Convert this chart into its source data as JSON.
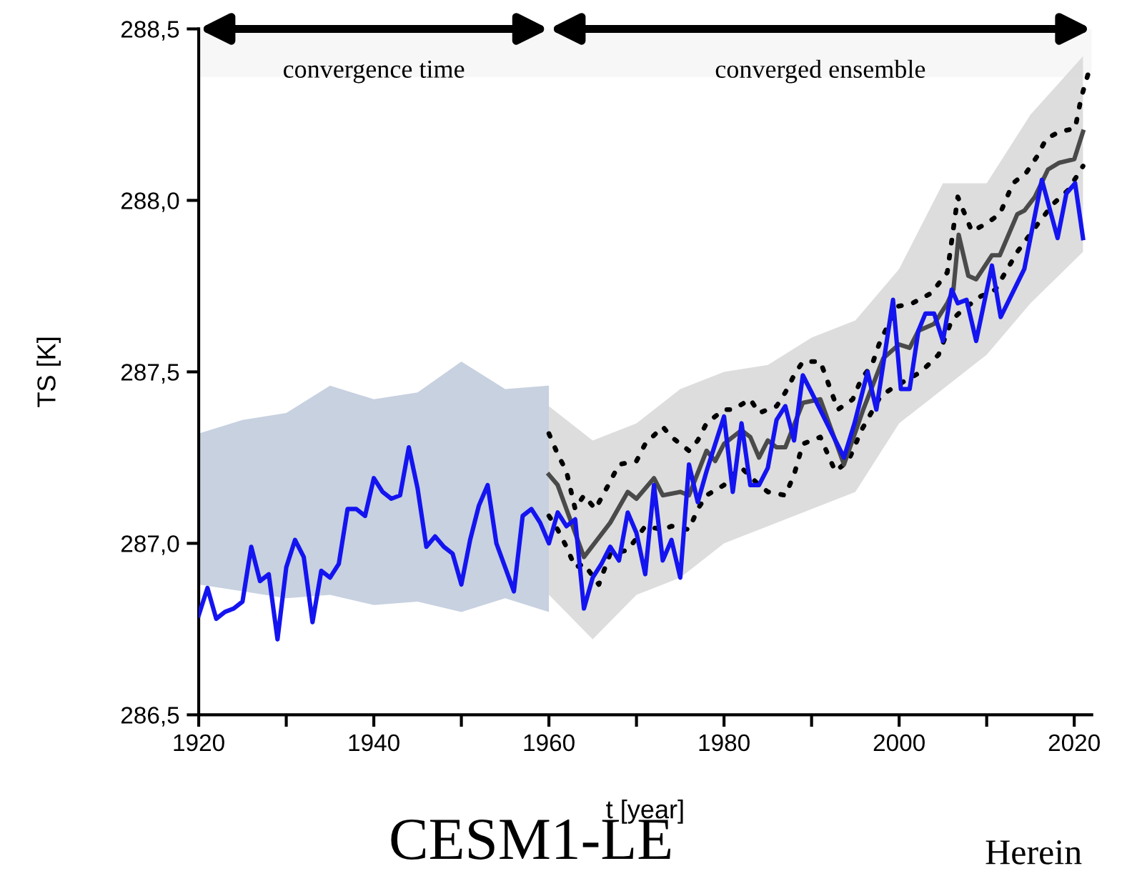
{
  "chart_data": {
    "type": "line",
    "xlabel": "t [year]",
    "ylabel": "TS [K]",
    "xlim": [
      1920,
      2022
    ],
    "ylim": [
      286.5,
      288.5
    ],
    "xticks": [
      1920,
      {
        "value": 1930,
        "label": null
      },
      1940,
      {
        "value": 1950,
        "label": null
      },
      1960,
      {
        "value": 1970,
        "label": null
      },
      1980,
      {
        "value": 1990,
        "label": null
      },
      2000,
      {
        "value": 2010,
        "label": null
      },
      2020
    ],
    "yticks": [
      {
        "value": 286.5,
        "label": "286,5"
      },
      {
        "value": 287.0,
        "label": "287,0"
      },
      {
        "value": 287.5,
        "label": "287,5"
      },
      {
        "value": 288.0,
        "label": "288,0"
      },
      {
        "value": 288.5,
        "label": "288,5"
      }
    ],
    "grid": false,
    "legend": false,
    "line_style": "solid",
    "bands": [
      {
        "axis": "x",
        "from": 1920,
        "to": 1960,
        "label": "convergence time",
        "color": "#f7f7f7"
      },
      {
        "axis": "x",
        "from": 1960,
        "to": 2022,
        "label": "converged ensemble",
        "color": "#f7f7f7"
      }
    ],
    "annotations": [
      "CESM1-LE",
      "Herein"
    ],
    "series": [
      {
        "type": "area",
        "color": "#b9c6d8",
        "x": [
          1920,
          1925,
          1930,
          1935,
          1940,
          1945,
          1950,
          1955,
          1960
        ],
        "values": [
          null,
          null,
          null,
          null,
          null,
          null,
          null,
          null,
          null
        ],
        "lower": [
          286.88,
          286.86,
          286.84,
          286.85,
          286.82,
          286.83,
          286.8,
          286.84,
          286.8
        ],
        "upper": [
          287.32,
          287.36,
          287.38,
          287.46,
          287.42,
          287.44,
          287.53,
          287.45,
          287.46
        ]
      },
      {
        "type": "area",
        "color": "#d4d4d4",
        "x": [
          1960,
          1965,
          1970,
          1975,
          1980,
          1985,
          1990,
          1995,
          2000,
          2005,
          2010,
          2015,
          2021
        ],
        "values": [
          null,
          null,
          null,
          null,
          null,
          null,
          null,
          null,
          null,
          null,
          null,
          null,
          null
        ],
        "lower": [
          286.85,
          286.72,
          286.85,
          286.9,
          287.0,
          287.05,
          287.1,
          287.15,
          287.35,
          287.45,
          287.55,
          287.7,
          287.85
        ],
        "upper": [
          287.4,
          287.3,
          287.35,
          287.45,
          287.5,
          287.52,
          287.6,
          287.65,
          287.8,
          288.05,
          288.05,
          288.25,
          288.42
        ]
      },
      {
        "color": "#000000",
        "line_style": "dotted",
        "x": [
          1960,
          1961,
          1962,
          1963,
          1964,
          1965.3,
          1967,
          1968,
          1970,
          1971,
          1973,
          1974,
          1976,
          1977,
          1978,
          1980,
          1981,
          1983,
          1984,
          1986,
          1987,
          1988,
          1989,
          1991,
          1993,
          1994.7,
          1995.7,
          1996.9,
          1997.7,
          1999.7,
          2001.5,
          2003.7,
          2005.5,
          2006.7,
          2008.3,
          2009.8,
          2011.5,
          2013,
          2014.5,
          2015.8,
          2016.8,
          2018.3,
          2020.1,
          2020.8,
          2021.6
        ],
        "values": [
          287.32,
          287.26,
          287.21,
          287.1,
          287.14,
          287.1,
          287.18,
          287.23,
          287.24,
          287.29,
          287.34,
          287.31,
          287.27,
          287.3,
          287.35,
          287.39,
          287.39,
          287.42,
          287.38,
          287.4,
          287.44,
          287.49,
          287.53,
          287.53,
          287.39,
          287.42,
          287.48,
          287.52,
          287.58,
          287.69,
          287.7,
          287.73,
          287.79,
          288.01,
          287.91,
          287.93,
          287.96,
          288.05,
          288.08,
          288.13,
          288.18,
          288.2,
          288.21,
          288.3,
          288.37
        ]
      },
      {
        "color": "#000000",
        "line_style": "dotted",
        "x": [
          1960,
          1961,
          1962,
          1963,
          1964,
          1965.7,
          1967,
          1969,
          1971,
          1973,
          1974,
          1976,
          1977,
          1978,
          1980,
          1981,
          1982,
          1984,
          1985,
          1987,
          1988,
          1989,
          1991,
          1992.7,
          1994.2,
          1995.7,
          1997.9,
          1999.7,
          2002.5,
          2004.5,
          2006,
          2007.2,
          2009.3,
          2011,
          2013.5,
          2015.5,
          2017.6,
          2019.3,
          2021
        ],
        "values": [
          287.08,
          287.04,
          286.99,
          286.93,
          286.94,
          286.88,
          286.97,
          286.98,
          287.05,
          287.04,
          287.05,
          287.04,
          287.1,
          287.14,
          287.17,
          287.2,
          287.22,
          287.17,
          287.15,
          287.14,
          287.2,
          287.29,
          287.31,
          287.21,
          287.24,
          287.33,
          287.43,
          287.46,
          287.5,
          287.55,
          287.65,
          287.68,
          287.72,
          287.74,
          287.85,
          287.92,
          287.99,
          288.03,
          288.1
        ]
      },
      {
        "color": "#4a4a4a",
        "x": [
          1960,
          1961,
          1962,
          1964,
          1967,
          1969,
          1970,
          1972,
          1973,
          1975,
          1976,
          1978,
          1979,
          1980,
          1982,
          1983,
          1984,
          1985,
          1986,
          1987,
          1989,
          1991,
          1993.7,
          1995.9,
          1998.2,
          2000,
          2001.2,
          2002.2,
          2004,
          2005.5,
          2006.2,
          2006.8,
          2007.9,
          2008.8,
          2010.6,
          2011.5,
          2013.5,
          2014.3,
          2015.5,
          2017,
          2018.3,
          2020,
          2021
        ],
        "values": [
          287.2,
          287.17,
          287.1,
          286.96,
          287.06,
          287.15,
          287.13,
          287.19,
          287.14,
          287.15,
          287.14,
          287.27,
          287.24,
          287.29,
          287.33,
          287.31,
          287.25,
          287.3,
          287.28,
          287.28,
          287.41,
          287.42,
          287.23,
          287.39,
          287.54,
          287.58,
          287.57,
          287.62,
          287.64,
          287.7,
          287.74,
          287.9,
          287.78,
          287.77,
          287.84,
          287.84,
          287.96,
          287.97,
          288.01,
          288.09,
          288.11,
          288.12,
          288.2
        ]
      },
      {
        "color": "#1414f0",
        "x": [
          1920,
          1921,
          1922,
          1923,
          1924,
          1925,
          1926,
          1927,
          1928,
          1929,
          1930,
          1931,
          1932,
          1933,
          1934,
          1935,
          1936,
          1937,
          1938,
          1939,
          1940,
          1941,
          1942,
          1943,
          1944,
          1945,
          1946,
          1947,
          1948,
          1949,
          1950,
          1951,
          1952,
          1953,
          1954,
          1955,
          1956,
          1957,
          1958,
          1959,
          1960,
          1961,
          1962,
          1963,
          1964,
          1965,
          1966,
          1967,
          1968,
          1969,
          1970,
          1971,
          1972,
          1973,
          1974,
          1975,
          1976,
          1977,
          1978,
          1979,
          1980,
          1981,
          1982,
          1983,
          1984,
          1985,
          1986,
          1987,
          1988,
          1989,
          1990,
          1993.7,
          1994.9,
          1996.4,
          1997.4,
          1999.3,
          2000.2,
          2001.2,
          2002.2,
          2003,
          2004,
          2005,
          2006,
          2006.7,
          2007.7,
          2008.8,
          2010.6,
          2011.6,
          2014.3,
          2015.3,
          2016.3,
          2018.1,
          2019.1,
          2020.1,
          2021
        ],
        "values": [
          286.79,
          286.87,
          286.78,
          286.8,
          286.81,
          286.83,
          286.99,
          286.89,
          286.91,
          286.72,
          286.93,
          287.01,
          286.96,
          286.77,
          286.92,
          286.9,
          286.94,
          287.1,
          287.1,
          287.08,
          287.19,
          287.15,
          287.13,
          287.14,
          287.28,
          287.16,
          286.99,
          287.02,
          286.99,
          286.97,
          286.88,
          287.01,
          287.11,
          287.17,
          287.0,
          286.93,
          286.86,
          287.08,
          287.1,
          287.06,
          287.0,
          287.09,
          287.05,
          287.07,
          286.81,
          286.9,
          286.94,
          286.99,
          286.95,
          287.09,
          287.03,
          286.91,
          287.17,
          286.95,
          287.01,
          286.9,
          287.23,
          287.12,
          287.21,
          287.29,
          287.37,
          287.15,
          287.35,
          287.17,
          287.17,
          287.22,
          287.36,
          287.4,
          287.3,
          287.49,
          287.44,
          287.25,
          287.35,
          287.5,
          287.39,
          287.71,
          287.45,
          287.45,
          287.62,
          287.67,
          287.67,
          287.59,
          287.74,
          287.7,
          287.71,
          287.59,
          287.81,
          287.66,
          287.8,
          287.93,
          288.06,
          287.89,
          288.02,
          288.05,
          287.89
        ]
      }
    ]
  }
}
